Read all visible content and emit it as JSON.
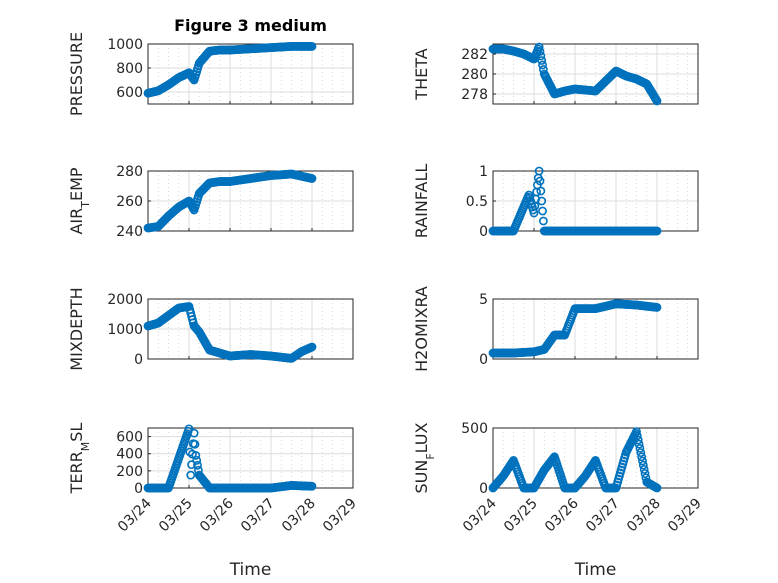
{
  "figure": {
    "title": "Figure 3 medium",
    "xlabel": "Time"
  },
  "colors": {
    "marker": "#0072BD",
    "axis": "#262626"
  },
  "chart_data": [
    {
      "type": "scatter",
      "title": "Figure 3 medium",
      "ylabel": "PRESSURE",
      "xlabel": "",
      "xlim": [
        "03/24",
        "03/29"
      ],
      "ylim": [
        500,
        1000
      ],
      "xticks": [
        "03/24",
        "03/25",
        "03/26",
        "03/27",
        "03/28",
        "03/29"
      ],
      "yticks": [
        600,
        800,
        1000
      ],
      "yticklabels": [
        "600",
        "800",
        "1000"
      ],
      "grid": true,
      "series": [
        {
          "x": [
            "03/24 00:00",
            "03/24 06:00",
            "03/24 12:00",
            "03/24 18:00",
            "03/25 00:00",
            "03/25 03:00",
            "03/25 06:00",
            "03/25 12:00",
            "03/25 18:00",
            "03/26 00:00",
            "03/26 12:00",
            "03/27 00:00",
            "03/27 12:00",
            "03/28 00:00"
          ],
          "y": [
            590,
            610,
            660,
            720,
            760,
            700,
            840,
            940,
            950,
            950,
            960,
            970,
            980,
            980
          ]
        }
      ]
    },
    {
      "type": "scatter",
      "ylabel": "THETA",
      "xlabel": "",
      "xlim": [
        "03/24",
        "03/29"
      ],
      "ylim": [
        277,
        283
      ],
      "xticks": [
        "03/24",
        "03/25",
        "03/26",
        "03/27",
        "03/28",
        "03/29"
      ],
      "yticks": [
        278,
        280,
        282
      ],
      "yticklabels": [
        "278",
        "280",
        "282"
      ],
      "grid": true,
      "series": [
        {
          "x": [
            "03/24 00:00",
            "03/24 06:00",
            "03/24 12:00",
            "03/24 18:00",
            "03/25 00:00",
            "03/25 03:00",
            "03/25 06:00",
            "03/25 12:00",
            "03/25 18:00",
            "03/26 00:00",
            "03/26 12:00",
            "03/27 00:00",
            "03/27 06:00",
            "03/27 12:00",
            "03/27 18:00",
            "03/28 00:00"
          ],
          "y": [
            282.5,
            282.5,
            282.3,
            282.0,
            281.5,
            282.7,
            280.0,
            278.0,
            278.3,
            278.5,
            278.3,
            280.3,
            279.8,
            279.5,
            279.0,
            277.3
          ]
        }
      ]
    },
    {
      "type": "scatter",
      "ylabel": "AIR_TEMP",
      "xlabel": "",
      "xlim": [
        "03/24",
        "03/29"
      ],
      "ylim": [
        240,
        280
      ],
      "xticks": [
        "03/24",
        "03/25",
        "03/26",
        "03/27",
        "03/28",
        "03/29"
      ],
      "yticks": [
        240,
        260,
        280
      ],
      "yticklabels": [
        "240",
        "260",
        "280"
      ],
      "grid": true,
      "series": [
        {
          "x": [
            "03/24 00:00",
            "03/24 06:00",
            "03/24 12:00",
            "03/24 18:00",
            "03/25 00:00",
            "03/25 03:00",
            "03/25 06:00",
            "03/25 12:00",
            "03/25 18:00",
            "03/26 00:00",
            "03/26 12:00",
            "03/27 00:00",
            "03/27 12:00",
            "03/28 00:00"
          ],
          "y": [
            242,
            243,
            250,
            256,
            260,
            254,
            265,
            272,
            273,
            273,
            275,
            277,
            278,
            275
          ]
        }
      ]
    },
    {
      "type": "scatter",
      "ylabel": "RAINFALL",
      "xlabel": "",
      "xlim": [
        "03/24",
        "03/29"
      ],
      "ylim": [
        0,
        1
      ],
      "xticks": [
        "03/24",
        "03/25",
        "03/26",
        "03/27",
        "03/28",
        "03/29"
      ],
      "yticks": [
        0,
        0.5,
        1
      ],
      "yticklabels": [
        "0",
        "0.5",
        "1"
      ],
      "grid": true,
      "series": [
        {
          "x": [
            "03/24 00:00",
            "03/24 12:00",
            "03/24 21:00",
            "03/25 00:00",
            "03/25 03:00",
            "03/25 06:00",
            "03/25 12:00",
            "03/26 00:00",
            "03/26 12:00",
            "03/27 00:00",
            "03/27 12:00",
            "03/28 00:00"
          ],
          "y": [
            0,
            0,
            0.6,
            0.3,
            1.0,
            0,
            0,
            0,
            0,
            0,
            0,
            0
          ]
        }
      ]
    },
    {
      "type": "scatter",
      "ylabel": "MIXDEPTH",
      "xlabel": "",
      "xlim": [
        "03/24",
        "03/29"
      ],
      "ylim": [
        0,
        2000
      ],
      "xticks": [
        "03/24",
        "03/25",
        "03/26",
        "03/27",
        "03/28",
        "03/29"
      ],
      "yticks": [
        0,
        1000,
        2000
      ],
      "yticklabels": [
        "0",
        "1000",
        "2000"
      ],
      "grid": true,
      "series": [
        {
          "x": [
            "03/24 00:00",
            "03/24 06:00",
            "03/24 12:00",
            "03/24 18:00",
            "03/25 00:00",
            "03/25 03:00",
            "03/25 06:00",
            "03/25 12:00",
            "03/26 00:00",
            "03/26 12:00",
            "03/27 00:00",
            "03/27 12:00",
            "03/27 18:00",
            "03/28 00:00"
          ],
          "y": [
            1100,
            1200,
            1450,
            1700,
            1750,
            1100,
            900,
            300,
            100,
            150,
            100,
            20,
            250,
            400
          ]
        }
      ]
    },
    {
      "type": "scatter",
      "ylabel": "H2OMIXRA",
      "xlabel": "",
      "xlim": [
        "03/24",
        "03/29"
      ],
      "ylim": [
        0,
        5
      ],
      "xticks": [
        "03/24",
        "03/25",
        "03/26",
        "03/27",
        "03/28",
        "03/29"
      ],
      "yticks": [
        0,
        5
      ],
      "yticklabels": [
        "0",
        "5"
      ],
      "grid": true,
      "series": [
        {
          "x": [
            "03/24 00:00",
            "03/24 12:00",
            "03/25 00:00",
            "03/25 06:00",
            "03/25 12:00",
            "03/25 18:00",
            "03/26 00:00",
            "03/26 12:00",
            "03/27 00:00",
            "03/27 12:00",
            "03/28 00:00"
          ],
          "y": [
            0.5,
            0.5,
            0.6,
            0.8,
            2.0,
            2.0,
            4.2,
            4.2,
            4.6,
            4.5,
            4.3
          ]
        }
      ]
    },
    {
      "type": "scatter",
      "ylabel": "TERR_MSL",
      "xlabel": "Time",
      "xlim": [
        "03/24",
        "03/29"
      ],
      "ylim": [
        0,
        700
      ],
      "xticks": [
        "03/24",
        "03/25",
        "03/26",
        "03/27",
        "03/28",
        "03/29"
      ],
      "xticklabels": [
        "03/24",
        "03/25",
        "03/26",
        "03/27",
        "03/28",
        "03/29"
      ],
      "yticks": [
        0,
        200,
        400,
        600
      ],
      "yticklabels": [
        "0",
        "200",
        "400",
        "600"
      ],
      "grid": true,
      "series": [
        {
          "x": [
            "03/24 00:00",
            "03/24 12:00",
            "03/25 00:00",
            "03/25 01:00",
            "03/25 03:00",
            "03/25 04:00",
            "03/25 06:00",
            "03/25 12:00",
            "03/26 00:00",
            "03/26 12:00",
            "03/27 00:00",
            "03/27 12:00",
            "03/28 00:00"
          ],
          "y": [
            0,
            0,
            690,
            150,
            640,
            380,
            150,
            0,
            0,
            0,
            0,
            30,
            20
          ]
        }
      ]
    },
    {
      "type": "scatter",
      "ylabel": "SUN_FLUX",
      "xlabel": "Time",
      "xlim": [
        "03/24",
        "03/29"
      ],
      "ylim": [
        0,
        500
      ],
      "xticks": [
        "03/24",
        "03/25",
        "03/26",
        "03/27",
        "03/28",
        "03/29"
      ],
      "xticklabels": [
        "03/24",
        "03/25",
        "03/26",
        "03/27",
        "03/28",
        "03/29"
      ],
      "yticks": [
        0,
        500
      ],
      "yticklabels": [
        "0",
        "500"
      ],
      "grid": true,
      "series": [
        {
          "x": [
            "03/24 00:00",
            "03/24 06:00",
            "03/24 12:00",
            "03/24 18:00",
            "03/25 00:00",
            "03/25 06:00",
            "03/25 12:00",
            "03/25 18:00",
            "03/26 00:00",
            "03/26 06:00",
            "03/26 12:00",
            "03/26 18:00",
            "03/27 00:00",
            "03/27 06:00",
            "03/27 12:00",
            "03/27 18:00",
            "03/28 00:00"
          ],
          "y": [
            0,
            100,
            230,
            0,
            0,
            150,
            260,
            0,
            0,
            100,
            230,
            0,
            0,
            300,
            470,
            50,
            0
          ]
        }
      ]
    }
  ]
}
